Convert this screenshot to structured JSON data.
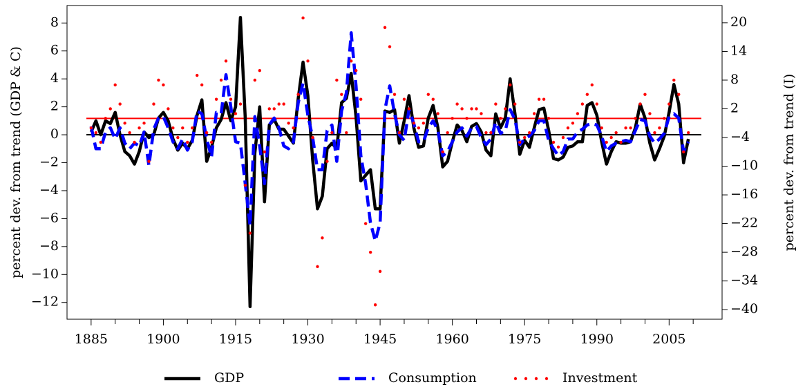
{
  "chart_data": {
    "type": "line",
    "ylabel": "percent dev. from trend (GDP & C)",
    "y2label": "percent dev. from trend (I)",
    "x": [
      1885,
      1886,
      1887,
      1888,
      1889,
      1890,
      1891,
      1892,
      1893,
      1894,
      1895,
      1896,
      1897,
      1898,
      1899,
      1900,
      1901,
      1902,
      1903,
      1904,
      1905,
      1906,
      1907,
      1908,
      1909,
      1910,
      1911,
      1912,
      1913,
      1914,
      1915,
      1916,
      1917,
      1918,
      1919,
      1920,
      1921,
      1922,
      1923,
      1924,
      1925,
      1926,
      1927,
      1928,
      1929,
      1930,
      1931,
      1932,
      1933,
      1934,
      1935,
      1936,
      1937,
      1938,
      1939,
      1940,
      1941,
      1942,
      1943,
      1944,
      1945,
      1946,
      1947,
      1948,
      1949,
      1950,
      1951,
      1952,
      1953,
      1954,
      1955,
      1956,
      1957,
      1958,
      1959,
      1960,
      1961,
      1962,
      1963,
      1964,
      1965,
      1966,
      1967,
      1968,
      1969,
      1970,
      1971,
      1972,
      1973,
      1974,
      1975,
      1976,
      1977,
      1978,
      1979,
      1980,
      1981,
      1982,
      1983,
      1984,
      1985,
      1986,
      1987,
      1988,
      1989,
      1990,
      1991,
      1992,
      1993,
      1994,
      1995,
      1996,
      1997,
      1998,
      1999,
      2000,
      2001,
      2002,
      2003,
      2004,
      2005,
      2006,
      2007,
      2008,
      2009
    ],
    "series": [
      {
        "name": "GDP",
        "color": "#000000",
        "style": "solid",
        "axis": "y",
        "values": [
          0.2,
          1.0,
          0,
          1.0,
          0.8,
          1.6,
          0,
          -1.2,
          -1.5,
          -2.1,
          -1.2,
          0.2,
          -0.2,
          0,
          1.2,
          1.6,
          1.0,
          -0.3,
          -1.1,
          -0.6,
          -1.0,
          -0.4,
          1.4,
          2.5,
          -1.9,
          -0.9,
          0.5,
          1.1,
          2.3,
          1.0,
          2.0,
          8.4,
          1.2,
          -12.3,
          -1.3,
          2.0,
          -4.8,
          0.7,
          1.1,
          0.4,
          0.4,
          -0.1,
          -0.6,
          2.6,
          5.2,
          2.8,
          -1.8,
          -5.3,
          -4.4,
          -1.0,
          -0.6,
          -1.0,
          2.3,
          2.6,
          4.4,
          1.3,
          -3.3,
          -2.9,
          -2.5,
          -5.3,
          -5.3,
          1.7,
          1.6,
          1.8,
          -0.6,
          1.0,
          2.8,
          0.5,
          -0.9,
          -0.8,
          1.2,
          2.1,
          0.5,
          -2.3,
          -1.9,
          -0.5,
          0.7,
          0.3,
          -0.5,
          0.6,
          0.8,
          0.2,
          -1.1,
          -1.5,
          1.5,
          0.5,
          1.2,
          4.0,
          1.5,
          -1.4,
          -0.4,
          -0.9,
          0.5,
          1.8,
          1.9,
          0.3,
          -1.7,
          -1.8,
          -1.6,
          -0.9,
          -0.8,
          -0.5,
          -0.5,
          2.1,
          2.3,
          1.4,
          -0.5,
          -2.1,
          -1.2,
          -0.5,
          -0.6,
          -0.6,
          -0.5,
          0.5,
          2.2,
          1.2,
          -0.6,
          -1.8,
          -1.0,
          -0.1,
          1.6,
          3.6,
          2.2,
          -2.0,
          -0.3
        ]
      },
      {
        "name": "Consumption",
        "color": "#0000ff",
        "style": "dashed",
        "axis": "y",
        "values": [
          0.6,
          -1.0,
          -1.0,
          0.2,
          0.5,
          -0.3,
          0.5,
          -0.6,
          -1.0,
          -0.6,
          -0.8,
          0.2,
          -2.2,
          0.4,
          1.2,
          1.3,
          0.5,
          -0.5,
          -1.0,
          -0.3,
          -1.1,
          -0.5,
          1.7,
          1.5,
          -0.3,
          -1.6,
          1.6,
          1.5,
          4.3,
          2.0,
          -0.5,
          -0.6,
          -3.5,
          -6.5,
          1.3,
          -0.8,
          -3.5,
          0.7,
          1.2,
          0.5,
          -0.8,
          -1.0,
          -0.5,
          2.3,
          3.7,
          1.4,
          -0.2,
          -2.5,
          -2.5,
          0.3,
          0.7,
          -1.9,
          1.7,
          3.0,
          7.3,
          3.5,
          -1.5,
          -3.5,
          -6.3,
          -7.6,
          -6.3,
          1.8,
          3.5,
          1.5,
          0.0,
          -0.4,
          1.8,
          0.8,
          -0.5,
          -0.5,
          0.5,
          1.0,
          0.3,
          -1.5,
          -1.2,
          -0.5,
          0.2,
          0.5,
          -0.1,
          0.5,
          0.6,
          -0.2,
          -0.7,
          -0.3,
          0.9,
          0.1,
          0.3,
          1.8,
          1.1,
          -0.7,
          -0.3,
          -0.1,
          0.3,
          1.0,
          1.0,
          -0.4,
          -1.0,
          -1.5,
          -1.2,
          -0.3,
          -0.3,
          0.2,
          0.4,
          0.7,
          0.8,
          0.7,
          -0.1,
          -1.2,
          -0.8,
          -0.6,
          -0.5,
          -0.4,
          -0.5,
          0.3,
          1.1,
          1.0,
          -0.1,
          -0.6,
          -0.3,
          0.1,
          1.3,
          1.5,
          1.2,
          -1.2,
          -0.5
        ]
      },
      {
        "name": "Investment",
        "color": "#ff0000",
        "style": "dotted",
        "axis": "y2",
        "values": [
          -2,
          -3,
          -5,
          0,
          2,
          7,
          3,
          -1,
          -3,
          -5,
          -2,
          -1,
          -9,
          3,
          8,
          7,
          2,
          -2,
          -4,
          -2,
          -5,
          -2,
          9,
          7,
          -3,
          -5,
          4,
          8,
          12,
          4,
          1,
          3,
          -14,
          -24,
          8,
          10,
          -7,
          2,
          2,
          3,
          3,
          -1,
          -2,
          5,
          21,
          12,
          -4,
          -31,
          -25,
          -9,
          -3,
          8,
          5,
          -3,
          12,
          10,
          4,
          -22,
          -28,
          -39,
          -32,
          19,
          15,
          5,
          -3,
          4,
          2,
          -1,
          -2,
          -1,
          5,
          4,
          1,
          -7,
          -3,
          0,
          3,
          2,
          0,
          2,
          2,
          1,
          -3,
          -3,
          3,
          0,
          2,
          7,
          3,
          -5,
          -4,
          -3,
          1,
          4,
          4,
          0,
          -5,
          -6,
          -4,
          -2,
          -1,
          1,
          3,
          5,
          7,
          3,
          -2,
          -5,
          -4,
          -3,
          -5,
          -2,
          -2,
          0,
          3,
          5,
          1,
          -3,
          -2,
          0,
          3,
          8,
          5,
          -7,
          -3
        ]
      }
    ],
    "xlim": [
      1880,
      2016
    ],
    "xticks": [
      1885,
      1900,
      1915,
      1930,
      1945,
      1960,
      1975,
      1990,
      2005
    ],
    "xminorticks": [
      1890,
      1895,
      1905,
      1910,
      1920,
      1925,
      1935,
      1940,
      1950,
      1955,
      1965,
      1970,
      1980,
      1985,
      1995,
      2000,
      2010
    ],
    "ylim": [
      -13.2,
      9.25
    ],
    "yticks": [
      {
        "value": -12,
        "label": "−12"
      },
      {
        "value": -10,
        "label": "−10"
      },
      {
        "value": -8,
        "label": "−8"
      },
      {
        "value": -6,
        "label": "−6"
      },
      {
        "value": -4,
        "label": "−4"
      },
      {
        "value": -2,
        "label": "−2"
      },
      0,
      2,
      4,
      6,
      8
    ],
    "y2lim": [
      -42,
      23.6
    ],
    "y2ticks": [
      {
        "value": -40,
        "label": "−40"
      },
      {
        "value": -34,
        "label": "−34"
      },
      {
        "value": -28,
        "label": "−28"
      },
      {
        "value": -22,
        "label": "−22"
      },
      {
        "value": -16,
        "label": "−16"
      },
      {
        "value": -10,
        "label": "−10"
      },
      {
        "value": -4,
        "label": "−4"
      },
      2,
      8,
      14,
      20
    ],
    "reference_lines": [
      {
        "axis": "y",
        "value": 0,
        "color": "#000000"
      },
      {
        "axis": "y2",
        "value": 0,
        "color": "#ff0000"
      }
    ],
    "legend": "bottom"
  }
}
